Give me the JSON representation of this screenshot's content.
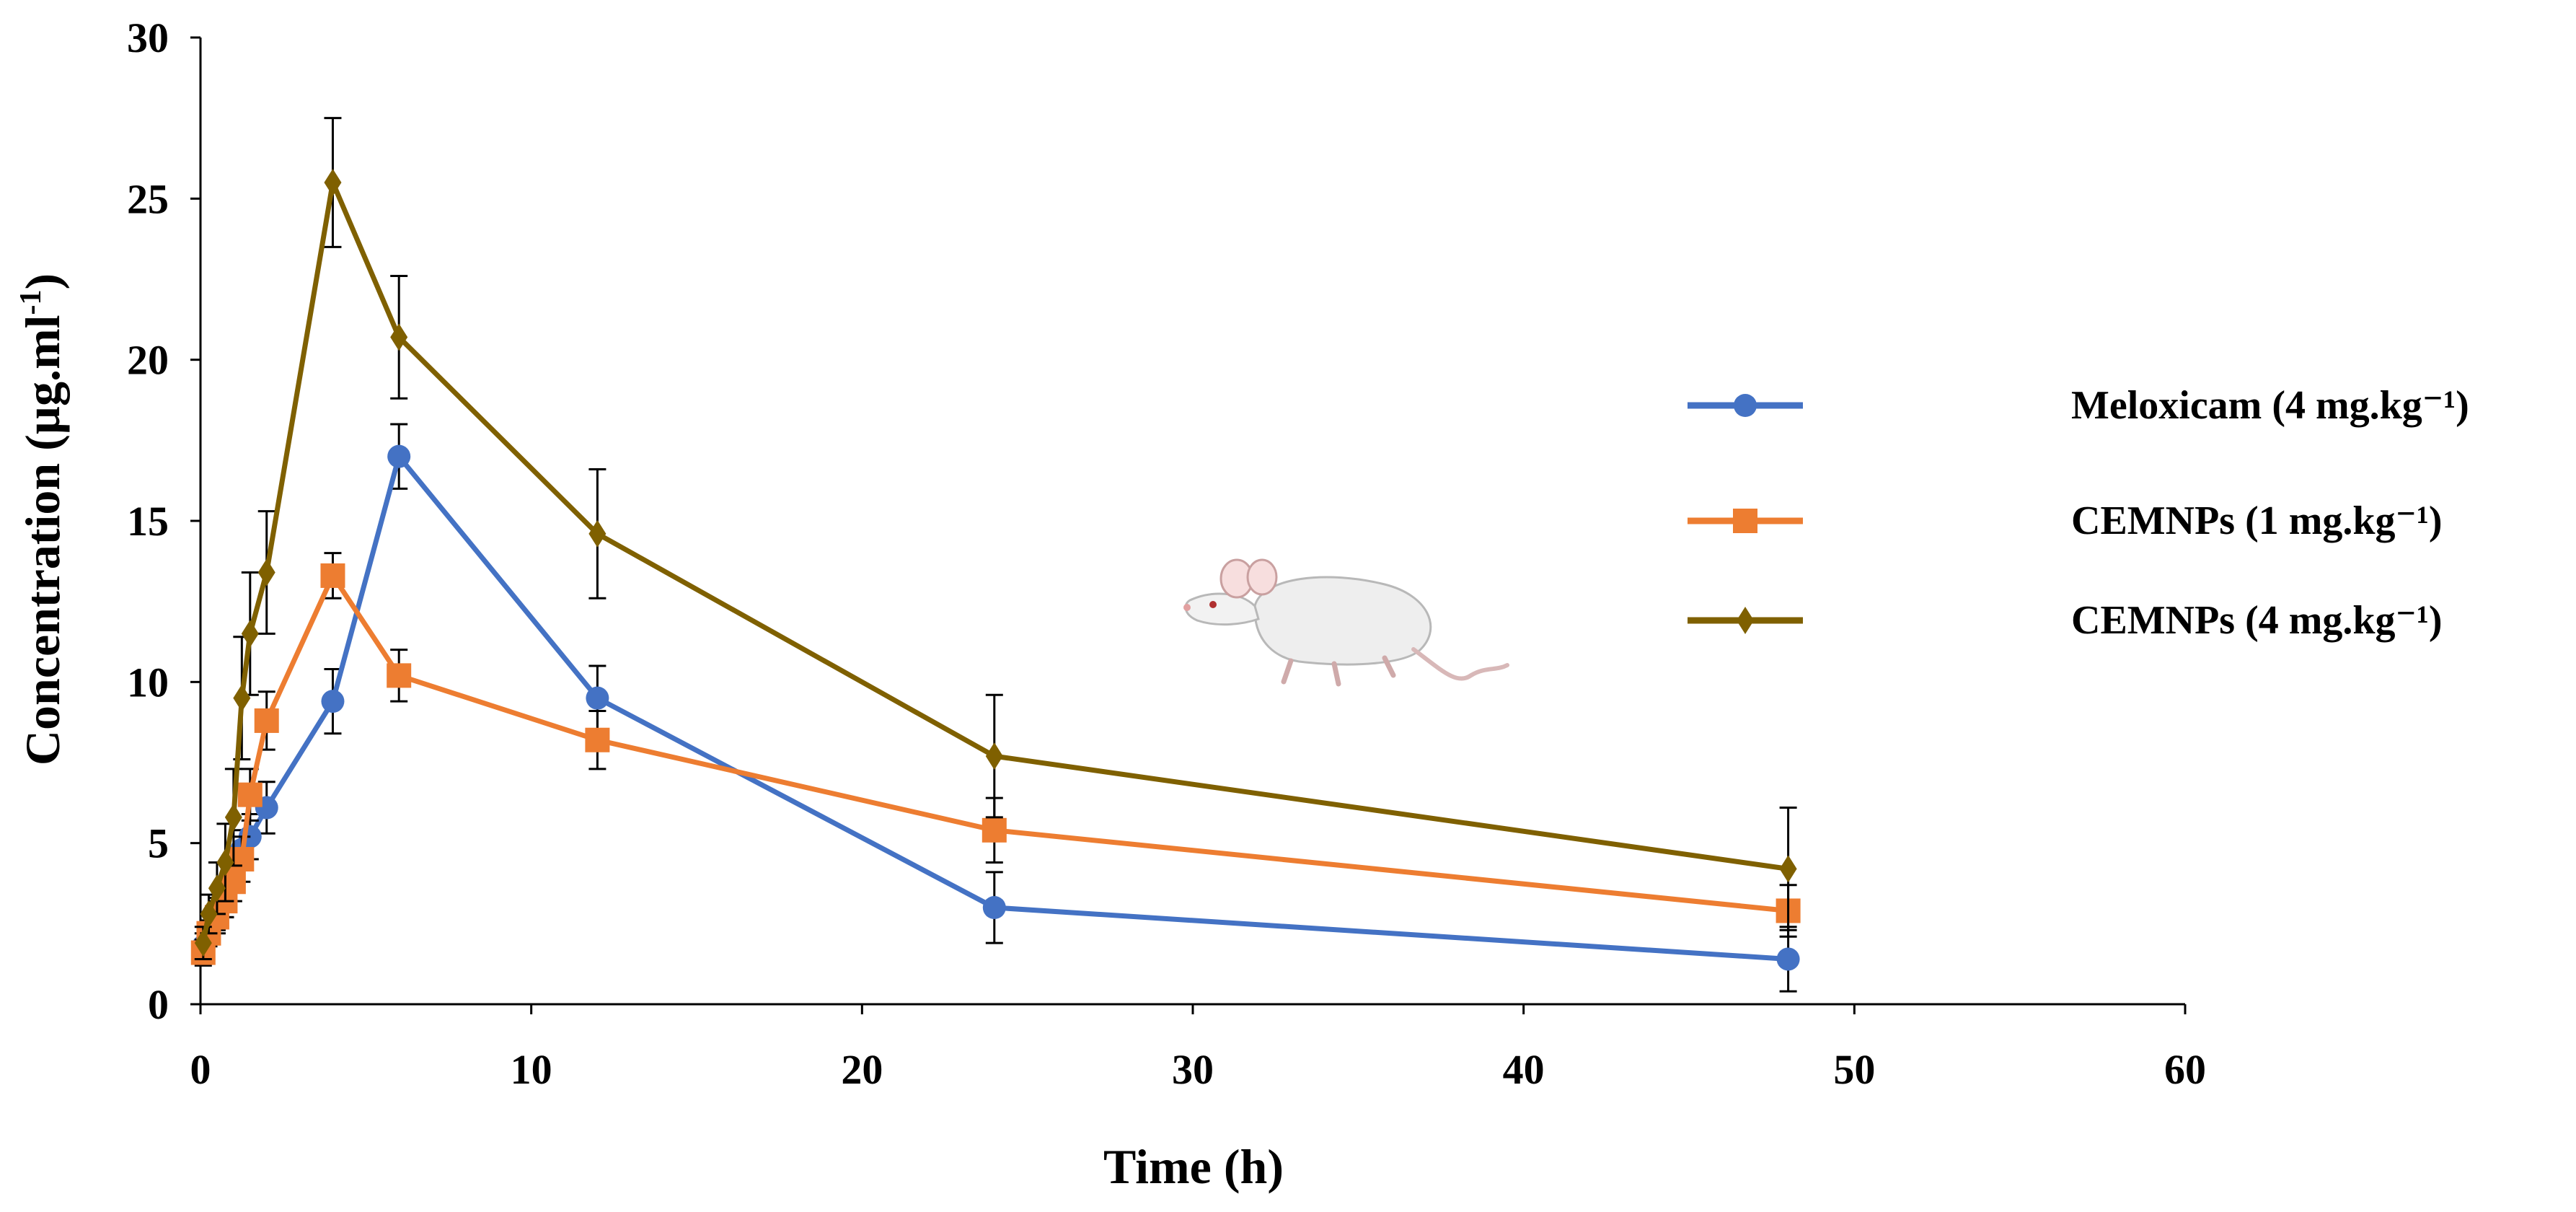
{
  "chart_data": {
    "type": "line",
    "title": "",
    "xlabel": "Time (h)",
    "ylabel_main": "Concentration  (µg.ml",
    "ylabel_sup": "-1",
    "ylabel_close": ")",
    "xlim": [
      0,
      60
    ],
    "ylim": [
      0,
      30
    ],
    "xticks": [
      0,
      10,
      20,
      30,
      40,
      50,
      60
    ],
    "yticks": [
      0,
      5,
      10,
      15,
      20,
      25,
      30
    ],
    "grid": false,
    "legend_position": "right",
    "x": [
      0.083,
      0.25,
      0.5,
      0.75,
      1,
      1.25,
      1.5,
      2,
      4,
      6,
      12,
      24,
      48
    ],
    "series": [
      {
        "name": "Meloxicam (4 mg.kg⁻¹)",
        "color": "#4472C4",
        "marker": "circle",
        "values": [
          1.8,
          2.3,
          2.8,
          3.3,
          4.2,
          4.8,
          5.2,
          6.1,
          9.4,
          17.0,
          9.5,
          3.0,
          1.4
        ],
        "errors": [
          0.4,
          0.5,
          0.5,
          0.6,
          0.6,
          0.6,
          0.7,
          0.8,
          1.0,
          1.0,
          1.0,
          1.1,
          1.0
        ]
      },
      {
        "name": "CEMNPs (1 mg.kg⁻¹)",
        "color": "#ED7D31",
        "marker": "square",
        "values": [
          1.6,
          2.2,
          2.7,
          3.2,
          3.8,
          4.5,
          6.5,
          8.8,
          13.3,
          10.2,
          8.2,
          5.4,
          2.9
        ],
        "errors": [
          0.4,
          0.4,
          0.5,
          0.5,
          0.6,
          0.7,
          0.8,
          0.9,
          0.7,
          0.8,
          0.9,
          1.0,
          0.8
        ]
      },
      {
        "name": "CEMNPs (4 mg.kg⁻¹)",
        "color": "#7F6000",
        "marker": "diamond",
        "values": [
          1.9,
          2.8,
          3.6,
          4.4,
          5.8,
          9.5,
          11.5,
          13.4,
          25.5,
          20.7,
          14.6,
          7.7,
          4.2
        ],
        "errors": [
          0.5,
          0.6,
          0.8,
          1.2,
          1.5,
          1.9,
          1.9,
          1.9,
          2.0,
          1.9,
          2.0,
          1.9,
          1.9
        ]
      }
    ]
  },
  "legend": {
    "items": [
      {
        "label": "Meloxicam (4 mg.kg⁻¹)",
        "color": "#4472C4",
        "marker": "circle"
      },
      {
        "label": "CEMNPs (1 mg.kg⁻¹)",
        "color": "#ED7D31",
        "marker": "square"
      },
      {
        "label": "CEMNPs (4 mg.kg⁻¹)",
        "color": "#7F6000",
        "marker": "diamond"
      }
    ]
  },
  "decoration": {
    "icon": "rat-icon"
  }
}
